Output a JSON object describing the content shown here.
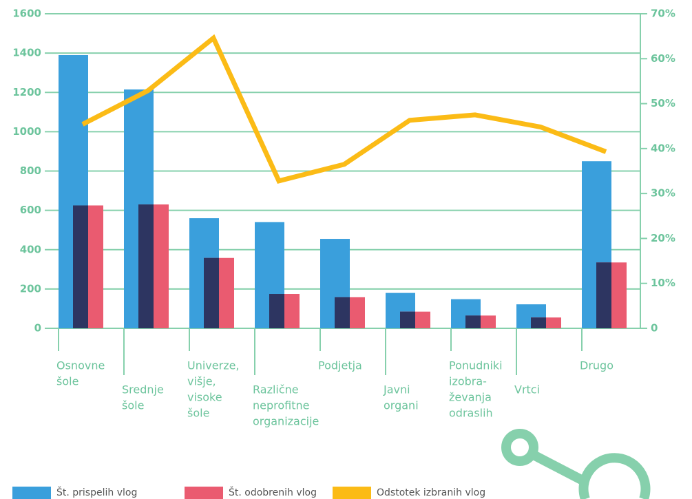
{
  "chart_data": {
    "type": "bar_line",
    "categories": [
      [
        "Osnovne",
        "šole"
      ],
      [
        "Srednje",
        "šole"
      ],
      [
        "Univerze,",
        "višje,",
        "visoke",
        "šole"
      ],
      [
        "Različne",
        "neprofitne",
        "organizacije"
      ],
      [
        "Podjetja"
      ],
      [
        "Javni",
        "organi"
      ],
      [
        "Ponudniki",
        "izobra-",
        "ževanja",
        "odraslih"
      ],
      [
        "Vrtci"
      ],
      [
        "Drugo"
      ]
    ],
    "series": [
      {
        "name": "Št. prispelih vlog",
        "color": "#3a9fdc",
        "values": [
          1390,
          1215,
          560,
          540,
          455,
          180,
          148,
          122,
          850
        ]
      },
      {
        "name": "Št. odobrenih vlog",
        "color": "#ea5b70",
        "values": [
          625,
          630,
          358,
          175,
          158,
          85,
          65,
          55,
          335
        ]
      },
      {
        "name": "Odstotek izbranih vlog",
        "color": "#fbbb16",
        "axis": "y2",
        "values": [
          45.4,
          52.9,
          64.6,
          32.8,
          36.5,
          46.3,
          47.5,
          44.8,
          39.3
        ]
      }
    ],
    "overlap_color": "#2d3561",
    "ylim": [
      0,
      1600
    ],
    "yticks": [
      0,
      200,
      400,
      600,
      800,
      1000,
      1200,
      1400,
      1600
    ],
    "y2lim": [
      0,
      70
    ],
    "y2ticks": [
      {
        "value": 0,
        "label": "0"
      },
      {
        "value": 10,
        "label": "10%"
      },
      {
        "value": 20,
        "label": "20%"
      },
      {
        "value": 30,
        "label": "30%"
      },
      {
        "value": 40,
        "label": "40%"
      },
      {
        "value": 50,
        "label": "50%"
      },
      {
        "value": 60,
        "label": "60%"
      },
      {
        "value": 70,
        "label": "70%"
      }
    ],
    "grid": true,
    "legend": "bottom"
  }
}
